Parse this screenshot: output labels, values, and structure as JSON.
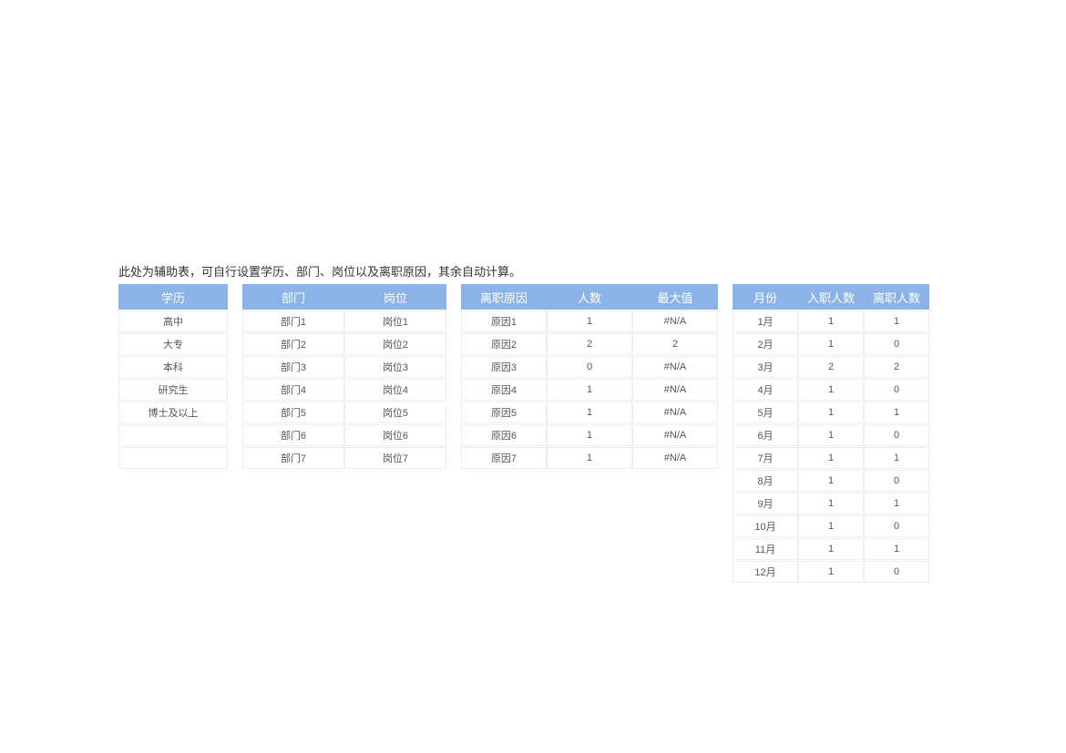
{
  "note": "此处为辅助表，可自行设置学历、部门、岗位以及离职原因，其余自动计算。",
  "header_bg": "#8cb3e8",
  "header_fg": "#ffffff",
  "cell_border": "#eeeeee",
  "edu": {
    "header": "学历",
    "rows": [
      "高中",
      "大专",
      "本科",
      "研究生",
      "博士及以上",
      "",
      ""
    ]
  },
  "dept": {
    "headers": [
      "部门",
      "岗位"
    ],
    "rows": [
      [
        "部门1",
        "岗位1"
      ],
      [
        "部门2",
        "岗位2"
      ],
      [
        "部门3",
        "岗位3"
      ],
      [
        "部门4",
        "岗位4"
      ],
      [
        "部门5",
        "岗位5"
      ],
      [
        "部门6",
        "岗位6"
      ],
      [
        "部门7",
        "岗位7"
      ]
    ]
  },
  "reason": {
    "headers": [
      "离职原因",
      "人数",
      "最大值"
    ],
    "rows": [
      [
        "原因1",
        "1",
        "#N/A"
      ],
      [
        "原因2",
        "2",
        "2"
      ],
      [
        "原因3",
        "0",
        "#N/A"
      ],
      [
        "原因4",
        "1",
        "#N/A"
      ],
      [
        "原因5",
        "1",
        "#N/A"
      ],
      [
        "原因6",
        "1",
        "#N/A"
      ],
      [
        "原因7",
        "1",
        "#N/A"
      ]
    ]
  },
  "month": {
    "headers": [
      "月份",
      "入职人数",
      "离职人数"
    ],
    "rows": [
      [
        "1月",
        "1",
        "1"
      ],
      [
        "2月",
        "1",
        "0"
      ],
      [
        "3月",
        "2",
        "2"
      ],
      [
        "4月",
        "1",
        "0"
      ],
      [
        "5月",
        "1",
        "1"
      ],
      [
        "6月",
        "1",
        "0"
      ],
      [
        "7月",
        "1",
        "1"
      ],
      [
        "8月",
        "1",
        "0"
      ],
      [
        "9月",
        "1",
        "1"
      ],
      [
        "10月",
        "1",
        "0"
      ],
      [
        "11月",
        "1",
        "1"
      ],
      [
        "12月",
        "1",
        "0"
      ]
    ]
  }
}
